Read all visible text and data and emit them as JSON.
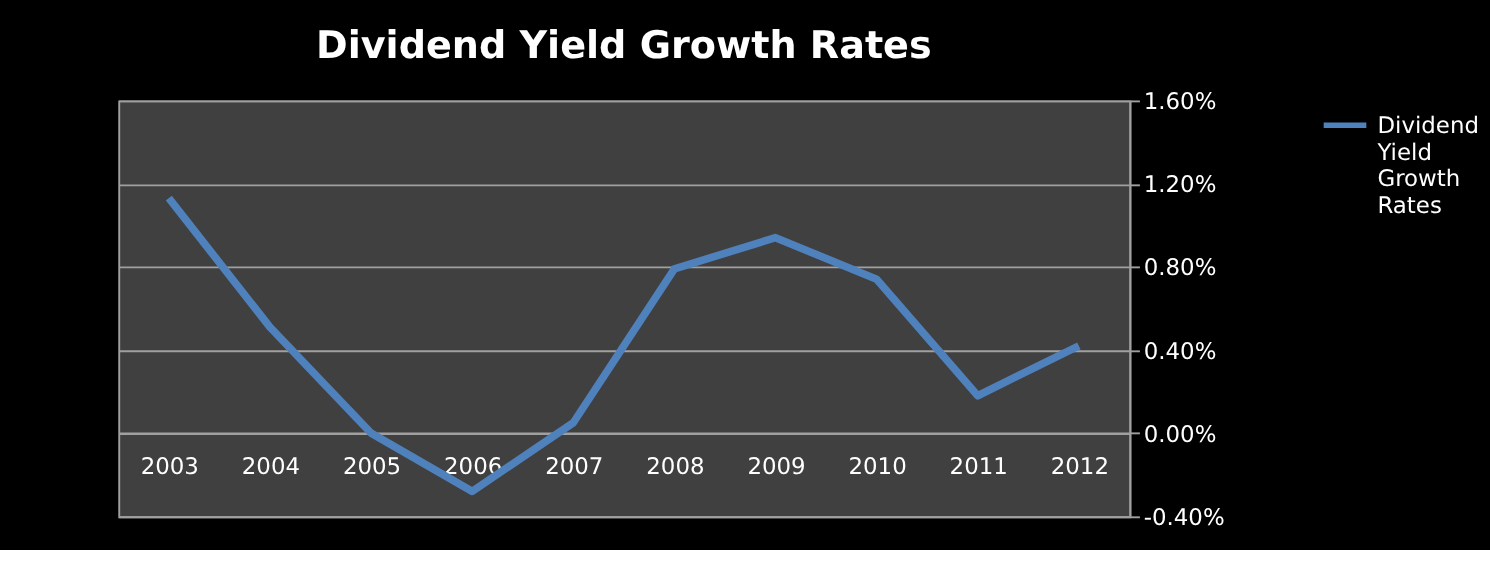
{
  "chart_data": {
    "type": "line",
    "title": "Dividend Yield Growth Rates",
    "categories": [
      "2003",
      "2004",
      "2005",
      "2006",
      "2007",
      "2008",
      "2009",
      "2010",
      "2011",
      "2012"
    ],
    "series": [
      {
        "name": "Dividend Yield Growth Rates",
        "color": "#4f81bd",
        "values": [
          1.13,
          0.51,
          0.0,
          -0.28,
          0.05,
          0.79,
          0.94,
          0.74,
          0.18,
          0.42
        ]
      }
    ],
    "ylim": [
      -0.4,
      1.6
    ],
    "yticks": [
      {
        "value": -0.4,
        "label": "-0.40%"
      },
      {
        "value": 0,
        "label": "0.00%"
      },
      {
        "value": 0.4,
        "label": "0.40%"
      },
      {
        "value": 0.8,
        "label": "0.80%"
      },
      {
        "value": 1.2,
        "label": "1.20%"
      },
      {
        "value": 1.6,
        "label": "1.60%"
      }
    ],
    "grid": true,
    "legend": "right",
    "marker": "none",
    "line_style": "solid"
  }
}
